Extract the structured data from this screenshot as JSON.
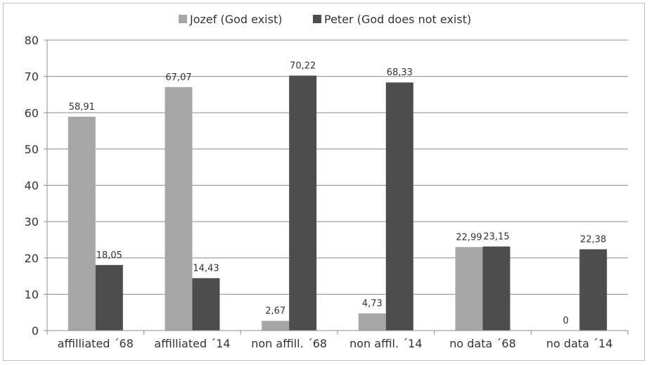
{
  "chart_data": {
    "type": "bar",
    "categories": [
      "affilliated ´68",
      "affilliated ´14",
      "non affill. ´68",
      "non affil. ´14",
      "no data ´68",
      "no data ´14"
    ],
    "series": [
      {
        "name": "Jozef (God exist)",
        "color": "#a6a6a6",
        "values": [
          58.91,
          67.07,
          2.67,
          4.73,
          22.99,
          0
        ],
        "labels": [
          "58,91",
          "67,07",
          "2,67",
          "4,73",
          "22,99",
          "0"
        ]
      },
      {
        "name": "Peter (God does not exist)",
        "color": "#4d4d4d",
        "values": [
          18.05,
          14.43,
          70.22,
          68.33,
          23.15,
          22.38
        ],
        "labels": [
          "18,05",
          "14,43",
          "70,22",
          "68,33",
          "23,15",
          "22,38"
        ]
      }
    ],
    "ylim": [
      0,
      80
    ],
    "yticks": [
      0,
      10,
      20,
      30,
      40,
      50,
      60,
      70,
      80
    ],
    "grid": true,
    "legend_position": "top-center"
  }
}
